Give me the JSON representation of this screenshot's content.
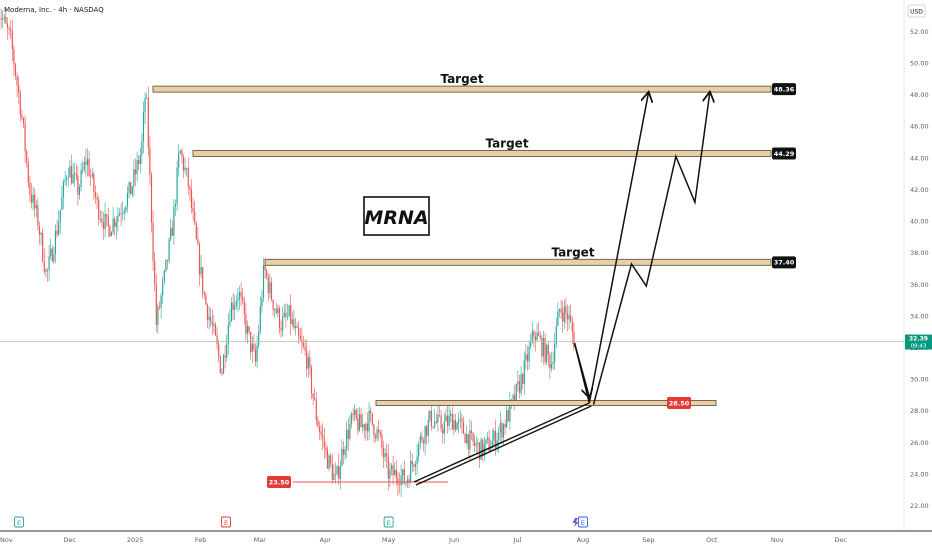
{
  "header": {
    "symbol_title": "Moderna, Inc. · 4h · NASDAQ",
    "currency": "USD"
  },
  "annotation": {
    "title": "MRNA"
  },
  "colors": {
    "up": "#26a69a",
    "down": "#ef5350",
    "zone_fill": "#e8cfa9",
    "zone_stroke": "#6b5a3a",
    "support_line": "#ef5350",
    "price_line": "#9bc8a4",
    "accent_blue": "#2962ff"
  },
  "chart_data": {
    "type": "candlestick",
    "title": "Moderna, Inc. · 4h · NASDAQ",
    "ylim": [
      20.4,
      54.0
    ],
    "y_ticks": [
      "52.00",
      "50.00",
      "48.00",
      "46.00",
      "44.00",
      "42.00",
      "40.00",
      "38.00",
      "36.00",
      "34.00",
      "32.00",
      "30.00",
      "28.00",
      "26.00",
      "24.00",
      "22.00"
    ],
    "x_ticks": [
      "Nov",
      "Dec",
      "2025",
      "Feb",
      "Mar",
      "Apr",
      "May",
      "Jun",
      "Jul",
      "Aug",
      "Sep",
      "Oct",
      "Nov",
      "Dec"
    ],
    "x_range": [
      "2024-11",
      "2025-12"
    ],
    "price_path": [
      [
        "2024-10-28",
        53.5
      ],
      [
        "2024-11-03",
        51.5
      ],
      [
        "2024-11-08",
        47.0
      ],
      [
        "2024-11-12",
        42.0
      ],
      [
        "2024-11-16",
        40.0
      ],
      [
        "2024-11-20",
        36.5
      ],
      [
        "2024-11-25",
        39.5
      ],
      [
        "2024-11-30",
        43.5
      ],
      [
        "2024-12-05",
        42.0
      ],
      [
        "2024-12-09",
        44.0
      ],
      [
        "2024-12-14",
        41.0
      ],
      [
        "2024-12-19",
        39.5
      ],
      [
        "2024-12-24",
        40.5
      ],
      [
        "2024-12-30",
        42.0
      ],
      [
        "2025-01-04",
        44.5
      ],
      [
        "2025-01-06",
        48.5
      ],
      [
        "2025-01-08",
        42.5
      ],
      [
        "2025-01-11",
        33.5
      ],
      [
        "2025-01-15",
        36.5
      ],
      [
        "2025-01-19",
        40.0
      ],
      [
        "2025-01-22",
        44.5
      ],
      [
        "2025-01-26",
        42.5
      ],
      [
        "2025-01-30",
        38.5
      ],
      [
        "2025-02-03",
        35.0
      ],
      [
        "2025-02-07",
        33.0
      ],
      [
        "2025-02-11",
        30.5
      ],
      [
        "2025-02-15",
        34.5
      ],
      [
        "2025-02-19",
        35.5
      ],
      [
        "2025-02-23",
        33.0
      ],
      [
        "2025-02-27",
        31.0
      ],
      [
        "2025-03-03",
        37.0
      ],
      [
        "2025-03-07",
        35.0
      ],
      [
        "2025-03-11",
        33.5
      ],
      [
        "2025-03-15",
        34.0
      ],
      [
        "2025-03-19",
        32.5
      ],
      [
        "2025-03-23",
        31.5
      ],
      [
        "2025-03-28",
        27.5
      ],
      [
        "2025-04-02",
        25.0
      ],
      [
        "2025-04-06",
        23.5
      ],
      [
        "2025-04-10",
        26.0
      ],
      [
        "2025-04-14",
        27.5
      ],
      [
        "2025-04-18",
        27.0
      ],
      [
        "2025-04-22",
        27.5
      ],
      [
        "2025-04-26",
        26.5
      ],
      [
        "2025-05-01",
        24.0
      ],
      [
        "2025-05-06",
        24.0
      ],
      [
        "2025-05-09",
        23.5
      ],
      [
        "2025-05-13",
        25.0
      ],
      [
        "2025-05-17",
        26.5
      ],
      [
        "2025-05-21",
        27.5
      ],
      [
        "2025-05-26",
        27.0
      ],
      [
        "2025-05-31",
        27.5
      ],
      [
        "2025-06-04",
        27.0
      ],
      [
        "2025-06-09",
        26.0
      ],
      [
        "2025-06-14",
        25.5
      ],
      [
        "2025-06-19",
        26.0
      ],
      [
        "2025-06-24",
        27.0
      ],
      [
        "2025-06-29",
        28.5
      ],
      [
        "2025-07-04",
        30.5
      ],
      [
        "2025-07-09",
        33.0
      ],
      [
        "2025-07-13",
        32.0
      ],
      [
        "2025-07-17",
        31.0
      ],
      [
        "2025-07-21",
        34.5
      ],
      [
        "2025-07-25",
        34.0
      ],
      [
        "2025-07-28",
        32.39
      ]
    ],
    "last_price": "32.39",
    "countdown": "09:43",
    "targets": [
      {
        "label": "Target",
        "value": "48.36"
      },
      {
        "label": "Target",
        "value": "44.29"
      },
      {
        "label": "Target",
        "value": "37.40"
      }
    ],
    "support_zone": {
      "value": "28.50"
    },
    "support_line": {
      "value": "23.50"
    },
    "earnings_markers": [
      "E",
      "E",
      "E",
      "E"
    ],
    "projection_arrows": [
      {
        "path": [
          [
            "2025-07-28",
            32.3
          ],
          [
            "2025-08-04",
            28.5
          ],
          [
            "2025-09-01",
            48.1
          ]
        ]
      },
      {
        "path": [
          [
            "2025-08-06",
            28.4
          ],
          [
            "2025-08-24",
            37.3
          ],
          [
            "2025-08-31",
            35.9
          ],
          [
            "2025-09-14",
            44.1
          ],
          [
            "2025-09-23",
            41.2
          ],
          [
            "2025-09-30",
            48.1
          ]
        ]
      }
    ],
    "trendline": {
      "path": [
        [
          "2025-05-13",
          23.5
        ],
        [
          "2025-08-04",
          28.5
        ]
      ]
    }
  }
}
